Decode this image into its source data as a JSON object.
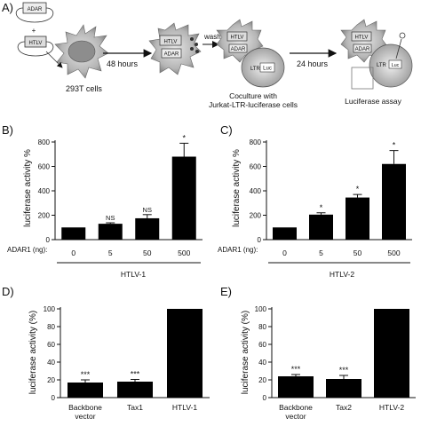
{
  "panel_a": {
    "letter": "A)",
    "plasmid_adar": "ADAR",
    "plasmid_htlv": "HTLV",
    "plus": "+",
    "cell_label": "293T cells",
    "step1": "48 hours",
    "wash": "wash",
    "step2": "24 hours",
    "cell_htlv": "HTLV",
    "cell_adar": "ADAR",
    "ltr": "LTR",
    "luc": "Luc",
    "coculture_line1": "Coculture with",
    "coculture_line2": "Jurkat-LTR-luciferase cells",
    "assay": "Luciferase assay"
  },
  "chart_data": [
    {
      "panel": "B)",
      "type": "bar",
      "ylabel": "luciferase activity %",
      "ylim": [
        0,
        800
      ],
      "yticks": [
        "0",
        "200",
        "400",
        "600",
        "800"
      ],
      "xprefix": "ADAR1 (ng):",
      "categories": [
        "0",
        "5",
        "50",
        "500"
      ],
      "values": [
        100,
        130,
        175,
        680
      ],
      "errors": [
        0,
        8,
        30,
        110
      ],
      "annotations": [
        "",
        "NS",
        "NS",
        "*"
      ],
      "group_label": "HTLV-1",
      "color": "#000000"
    },
    {
      "panel": "C)",
      "type": "bar",
      "ylabel": "luciferase activity %",
      "ylim": [
        0,
        800
      ],
      "yticks": [
        "0",
        "200",
        "400",
        "600",
        "800"
      ],
      "xprefix": "ADAR1 (ng):",
      "categories": [
        "0",
        "5",
        "50",
        "500"
      ],
      "values": [
        100,
        205,
        345,
        620
      ],
      "errors": [
        0,
        15,
        25,
        110
      ],
      "annotations": [
        "",
        "*",
        "*",
        "*"
      ],
      "group_label": "HTLV-2",
      "color": "#000000"
    },
    {
      "panel": "D)",
      "type": "bar",
      "ylabel": "luciferase activity (%)",
      "ylim": [
        0,
        100
      ],
      "yticks": [
        "0",
        "20",
        "40",
        "60",
        "80",
        "100"
      ],
      "categories": [
        "Backbone\nvector",
        "Tax1",
        "HTLV-1"
      ],
      "values": [
        17,
        18,
        100
      ],
      "errors": [
        3,
        2.5,
        0
      ],
      "annotations": [
        "***",
        "***",
        ""
      ],
      "color": "#000000"
    },
    {
      "panel": "E)",
      "type": "bar",
      "ylabel": "luciferase activity (%)",
      "ylim": [
        0,
        100
      ],
      "yticks": [
        "0",
        "20",
        "40",
        "60",
        "80",
        "100"
      ],
      "categories": [
        "Backbone\nvector",
        "Tax2",
        "HTLV-2"
      ],
      "values": [
        24,
        21,
        100
      ],
      "errors": [
        2,
        4,
        0
      ],
      "annotations": [
        "***",
        "***",
        ""
      ],
      "color": "#000000"
    }
  ]
}
